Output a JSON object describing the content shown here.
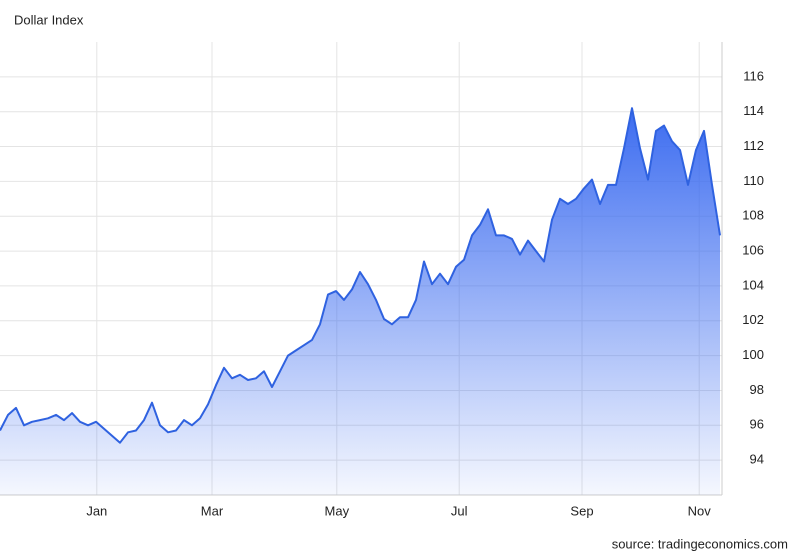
{
  "chart_data": {
    "type": "area",
    "title": "Dollar Index",
    "source": "source: tradingeconomics.com",
    "color": "#2f62e0",
    "grid": true,
    "values": [
      95.7,
      96.6,
      97.0,
      96.0,
      96.2,
      96.3,
      96.4,
      96.6,
      96.3,
      96.7,
      96.2,
      96.0,
      96.2,
      95.8,
      95.4,
      95.0,
      95.6,
      95.7,
      96.3,
      97.3,
      96.0,
      95.6,
      95.7,
      96.3,
      96.0,
      96.4,
      97.2,
      98.3,
      99.3,
      98.7,
      98.9,
      98.6,
      98.7,
      99.1,
      98.2,
      99.1,
      100.0,
      100.3,
      100.6,
      100.9,
      101.8,
      103.5,
      103.7,
      103.2,
      103.8,
      104.8,
      104.1,
      103.2,
      102.1,
      101.8,
      102.2,
      102.2,
      103.2,
      105.4,
      104.1,
      104.7,
      104.1,
      105.1,
      105.5,
      106.9,
      107.5,
      108.4,
      106.9,
      106.9,
      106.7,
      105.8,
      106.6,
      106.0,
      105.4,
      107.8,
      109.0,
      108.7,
      109.0,
      109.6,
      110.1,
      108.7,
      109.8,
      109.8,
      111.9,
      114.2,
      111.9,
      110.1,
      112.9,
      113.2,
      112.3,
      111.8,
      109.8,
      111.8,
      112.9,
      109.8,
      106.9
    ],
    "xlim": [
      0,
      90
    ],
    "xticks": [
      {
        "value": 12.1,
        "label": "Jan"
      },
      {
        "value": 26.5,
        "label": "Mar"
      },
      {
        "value": 42.1,
        "label": "May"
      },
      {
        "value": 57.4,
        "label": "Jul"
      },
      {
        "value": 72.75,
        "label": "Sep"
      },
      {
        "value": 87.4,
        "label": "Nov"
      }
    ],
    "ylim": [
      92,
      118
    ],
    "yticks": [
      94,
      96,
      98,
      100,
      102,
      104,
      106,
      108,
      110,
      112,
      114,
      116
    ]
  }
}
